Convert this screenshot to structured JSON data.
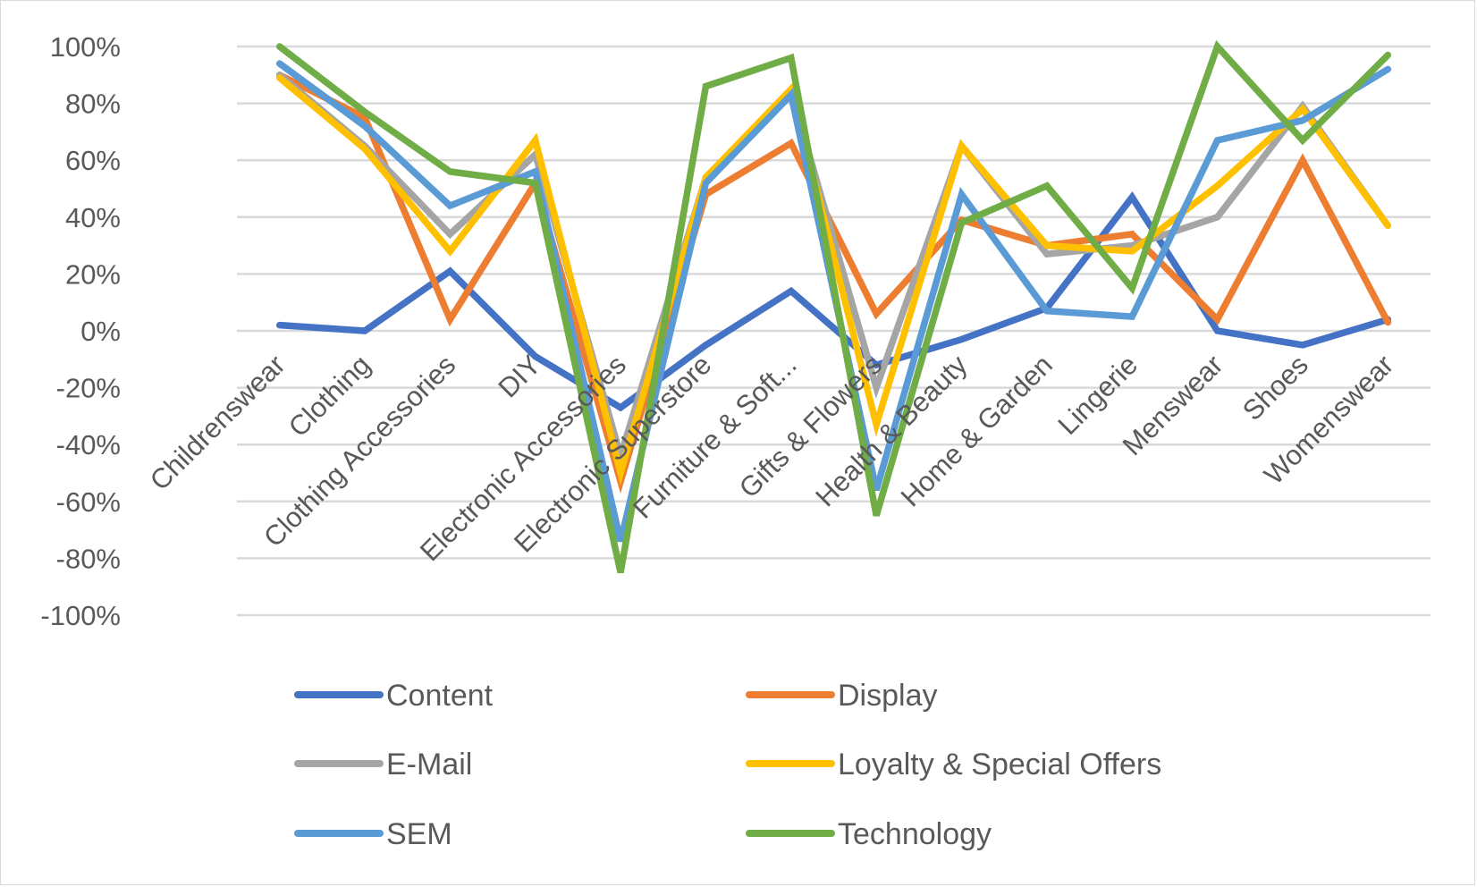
{
  "chart_data": {
    "type": "line",
    "title": "",
    "xlabel": "",
    "ylabel": "",
    "ylim": [
      -1,
      1
    ],
    "yticks": [
      "100%",
      "80%",
      "60%",
      "40%",
      "20%",
      "0%",
      "-20%",
      "-40%",
      "-60%",
      "-80%",
      "-100%"
    ],
    "ytick_values": [
      1,
      0.8,
      0.6,
      0.4,
      0.2,
      0,
      -0.2,
      -0.4,
      -0.6,
      -0.8,
      -1
    ],
    "grid": true,
    "legend_position": "bottom",
    "categories": [
      "Childrenswear",
      "Clothing",
      "Clothing Accessories",
      "DIY",
      "Electronic Accessories",
      "Electronic Superstore",
      "Furniture & Soft...",
      "Gifts & Flowers",
      "Health & Beauty",
      "Home & Garden",
      "Lingerie",
      "Menswear",
      "Shoes",
      "Womenswear"
    ],
    "series": [
      {
        "name": "Content",
        "color": "#4472c4",
        "values": [
          0.02,
          0.0,
          0.21,
          -0.09,
          -0.27,
          -0.05,
          0.14,
          -0.12,
          -0.03,
          0.08,
          0.47,
          0.0,
          -0.05,
          0.04
        ]
      },
      {
        "name": "Display",
        "color": "#ed7d31",
        "values": [
          0.9,
          0.75,
          0.04,
          0.52,
          -0.53,
          0.48,
          0.66,
          0.06,
          0.39,
          0.3,
          0.34,
          0.04,
          0.6,
          0.03
        ]
      },
      {
        "name": "E-Mail",
        "color": "#a5a5a5",
        "values": [
          0.9,
          0.65,
          0.34,
          0.62,
          -0.44,
          0.54,
          0.84,
          -0.2,
          0.65,
          0.27,
          0.3,
          0.4,
          0.79,
          0.37
        ]
      },
      {
        "name": "Loyalty & Special Offers",
        "color": "#ffc000",
        "values": [
          0.89,
          0.64,
          0.28,
          0.67,
          -0.5,
          0.54,
          0.85,
          -0.33,
          0.65,
          0.3,
          0.28,
          0.51,
          0.78,
          0.37
        ]
      },
      {
        "name": "SEM",
        "color": "#5b9bd5",
        "values": [
          0.94,
          0.72,
          0.44,
          0.56,
          -0.74,
          0.52,
          0.83,
          -0.56,
          0.48,
          0.07,
          0.05,
          0.67,
          0.74,
          0.92
        ]
      },
      {
        "name": "Technology",
        "color": "#70ad47",
        "values": [
          1.0,
          0.77,
          0.56,
          0.52,
          -0.85,
          0.86,
          0.96,
          -0.65,
          0.38,
          0.51,
          0.15,
          1.0,
          0.67,
          0.97
        ]
      }
    ]
  }
}
